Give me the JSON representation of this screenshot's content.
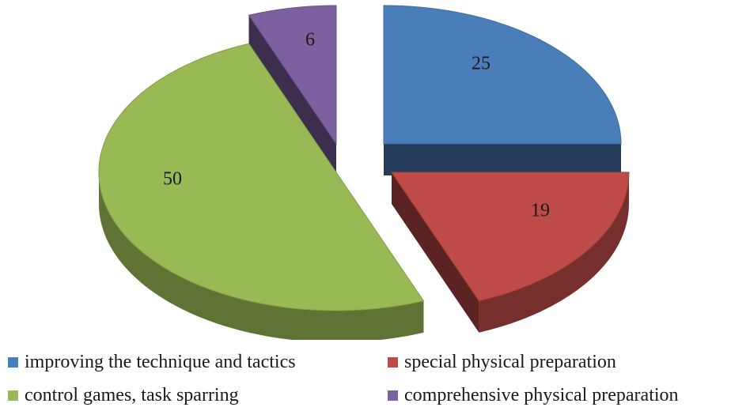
{
  "chart_data": {
    "type": "pie",
    "categories": [
      "improving the technique and tactics",
      "special physical preparation",
      "control games, task sparring",
      "comprehensive physical preparation"
    ],
    "values": [
      25,
      19,
      50,
      6
    ],
    "data_labels": [
      "25",
      "19",
      "50",
      "6"
    ],
    "colors": [
      "#4a7ebb",
      "#be4b48",
      "#98b954",
      "#7d60a0"
    ],
    "exploded": true,
    "three_d": true,
    "legend_position": "bottom"
  }
}
